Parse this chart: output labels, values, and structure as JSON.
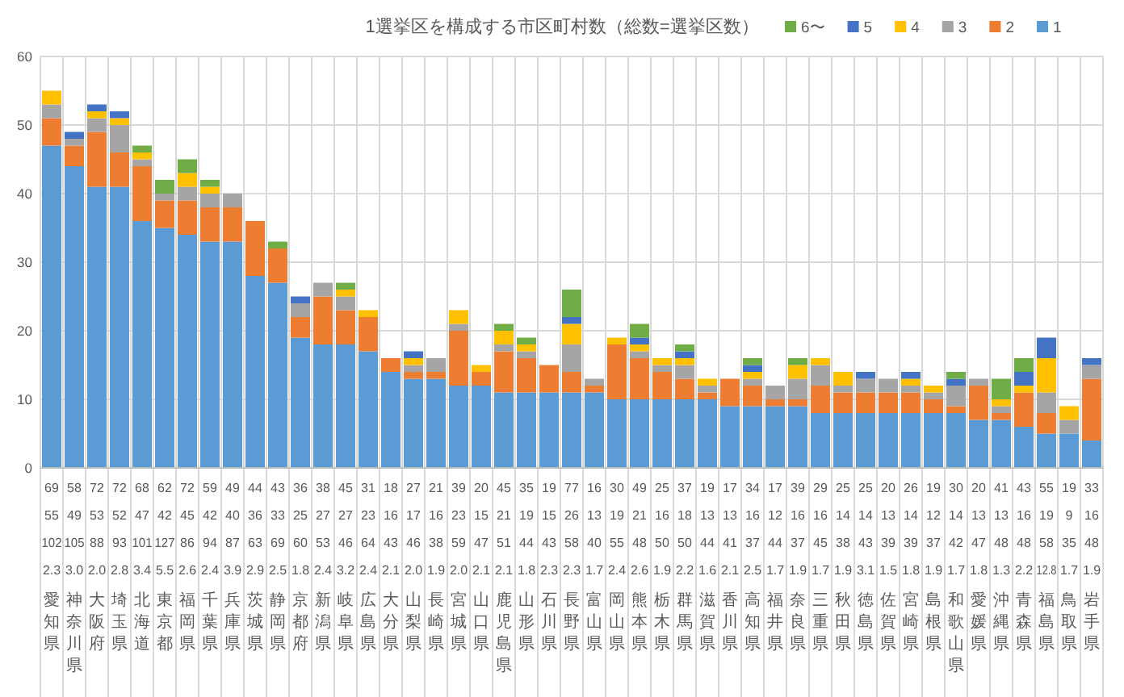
{
  "chart_data": {
    "type": "bar",
    "title": "1選挙区を構成する市区町村数（総数=選挙区数）",
    "stacked": true,
    "grid": true,
    "legend": "top right",
    "ylim": [
      0,
      60
    ],
    "yticks": [
      0,
      10,
      20,
      30,
      40,
      50,
      60
    ],
    "categories": [
      "69\n55\n102\n2.3\n愛知県",
      "58\n49\n105\n3.0\n神奈川県",
      "72\n53\n88\n2.0\n大阪府",
      "72\n52\n93\n2.8\n埼玉県",
      "68\n47\n101\n3.4\n北海道",
      "62\n42\n127\n5.5\n東京都",
      "72\n45\n86\n2.6\n福岡県",
      "59\n42\n94\n2.4\n千葉県",
      "49\n40\n87\n3.9\n兵庫県",
      "44\n36\n63\n2.9\n茨城県",
      "43\n33\n69\n2.5\n静岡県",
      "36\n25\n60\n1.8\n京都府",
      "38\n27\n53\n2.4\n新潟県",
      "45\n27\n46\n3.2\n岐阜県",
      "31\n23\n64\n2.4\n広島県",
      "18\n16\n43\n2.1\n大分県",
      "27\n17\n46\n2.0\n山梨県",
      "21\n16\n38\n1.9\n長崎県",
      "39\n23\n59\n2.0\n宮城県",
      "20\n15\n47\n2.1\n山口県",
      "45\n21\n51\n2.1\n鹿児島県",
      "35\n19\n44\n1.8\n山形県",
      "19\n15\n43\n2.3\n石川県",
      "77\n26\n58\n2.3\n長野県",
      "16\n13\n40\n1.7\n富山県",
      "30\n19\n55\n2.4\n岡山県",
      "49\n21\n48\n2.6\n熊本県",
      "25\n16\n50\n1.9\n栃木県",
      "37\n18\n50\n2.2\n群馬県",
      "19\n13\n44\n1.6\n滋賀県",
      "17\n13\n41\n2.1\n香川県",
      "34\n16\n37\n2.5\n高知県",
      "17\n12\n44\n1.7\n福井県",
      "39\n16\n37\n1.9\n奈良県",
      "29\n16\n45\n1.7\n三重県",
      "25\n14\n38\n1.9\n秋田県",
      "25\n14\n43\n3.1\n徳島県",
      "20\n13\n39\n1.5\n佐賀県",
      "26\n14\n39\n1.8\n宮崎県",
      "19\n12\n37\n1.9\n島根県",
      "30\n14\n42\n1.7\n和歌山県",
      "20\n13\n47\n1.8\n愛媛県",
      "41\n13\n48\n1.3\n沖縄県",
      "43\n16\n48\n2.2\n青森県",
      "55\n19\n58\n12.8\n福島県",
      "19\n9\n35\n1.7\n鳥取県",
      "33\n16\n48\n1.9\n岩手県"
    ],
    "series": [
      {
        "name": "1",
        "color": "#5b9bd5",
        "values": [
          47,
          44,
          41,
          41,
          36,
          35,
          34,
          33,
          33,
          28,
          27,
          19,
          18,
          18,
          17,
          14,
          13,
          13,
          12,
          12,
          11,
          11,
          11,
          11,
          11,
          10,
          10,
          10,
          10,
          10,
          9,
          9,
          9,
          9,
          8,
          8,
          8,
          8,
          8,
          8,
          8,
          7,
          7,
          6,
          5,
          5,
          4
        ]
      },
      {
        "name": "2",
        "color": "#ed7d31",
        "values": [
          4,
          3,
          8,
          5,
          8,
          4,
          5,
          5,
          5,
          8,
          5,
          3,
          7,
          5,
          5,
          2,
          1,
          1,
          8,
          2,
          6,
          5,
          4,
          3,
          1,
          8,
          6,
          4,
          3,
          1,
          4,
          3,
          1,
          1,
          4,
          3,
          3,
          3,
          3,
          2,
          1,
          5,
          1,
          5,
          3,
          0,
          9
        ]
      },
      {
        "name": "3",
        "color": "#a5a5a5",
        "values": [
          2,
          1,
          2,
          4,
          1,
          1,
          2,
          2,
          2,
          0,
          0,
          2,
          2,
          2,
          0,
          0,
          1,
          2,
          1,
          0,
          1,
          1,
          0,
          4,
          1,
          0,
          1,
          1,
          2,
          1,
          0,
          1,
          2,
          3,
          3,
          1,
          2,
          2,
          1,
          1,
          3,
          1,
          1,
          0,
          3,
          2,
          2
        ]
      },
      {
        "name": "4",
        "color": "#ffc000",
        "values": [
          2,
          0,
          1,
          1,
          1,
          0,
          2,
          1,
          0,
          0,
          0,
          0,
          0,
          1,
          1,
          0,
          1,
          0,
          2,
          1,
          2,
          1,
          0,
          3,
          0,
          1,
          1,
          1,
          1,
          1,
          0,
          1,
          0,
          2,
          1,
          2,
          0,
          0,
          1,
          1,
          0,
          0,
          1,
          1,
          5,
          2,
          0
        ]
      },
      {
        "name": "5",
        "color": "#4472c4",
        "values": [
          0,
          1,
          1,
          1,
          0,
          0,
          0,
          0,
          0,
          0,
          0,
          1,
          0,
          0,
          0,
          0,
          1,
          0,
          0,
          0,
          0,
          0,
          0,
          1,
          0,
          0,
          1,
          0,
          1,
          0,
          0,
          1,
          0,
          0,
          0,
          0,
          1,
          0,
          1,
          0,
          1,
          0,
          0,
          2,
          3,
          0,
          1
        ]
      },
      {
        "name": "6〜",
        "color": "#70ad47",
        "values": [
          0,
          0,
          0,
          0,
          1,
          2,
          2,
          1,
          0,
          0,
          1,
          0,
          0,
          1,
          0,
          0,
          0,
          0,
          0,
          0,
          1,
          1,
          0,
          4,
          0,
          0,
          2,
          0,
          1,
          0,
          0,
          1,
          0,
          1,
          0,
          0,
          0,
          0,
          0,
          0,
          1,
          0,
          3,
          2,
          0,
          0,
          0
        ]
      }
    ]
  }
}
